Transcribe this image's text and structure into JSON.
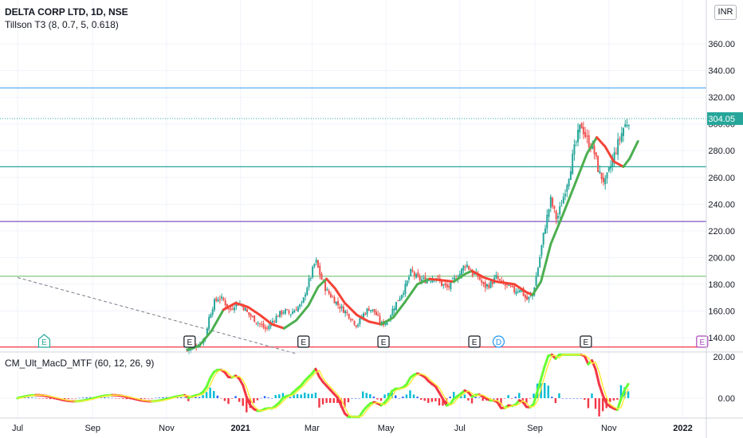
{
  "header": {
    "symbol": "DELTA CORP LTD",
    "interval": "1D",
    "exchange": "NSE",
    "currency": "INR"
  },
  "indicators": {
    "tillson": "Tillson T3 (8, 0.7, 5, 0.618)",
    "macd": "CM_Ult_MacD_MTF (60, 12, 26, 9)"
  },
  "chart_data": {
    "type": "candlestick",
    "ylim": [
      128,
      372
    ],
    "y_ticks": [
      140,
      160,
      180,
      200,
      220,
      240,
      260,
      280,
      300,
      320,
      340,
      360
    ],
    "y_tick_labels": [
      "140.00",
      "160.00",
      "180.00",
      "200.00",
      "220.00",
      "240.00",
      "260.00",
      "280.00",
      "300.00",
      "320.00",
      "340.00",
      "360.00"
    ],
    "x_labels": [
      {
        "label": "Jul",
        "day": 0
      },
      {
        "label": "Sep",
        "day": 62
      },
      {
        "label": "Nov",
        "day": 123
      },
      {
        "label": "2021",
        "day": 184
      },
      {
        "label": "Mar",
        "day": 243
      },
      {
        "label": "May",
        "day": 304
      },
      {
        "label": "Jul",
        "day": 365
      },
      {
        "label": "Sep",
        "day": 427
      },
      {
        "label": "Nov",
        "day": 488
      },
      {
        "label": "2022",
        "day": 549
      }
    ],
    "last_price": 304.05,
    "last_price_label": "304.05",
    "horizontal_lines": [
      {
        "value": 327,
        "color": "#64b5f6"
      },
      {
        "value": 268,
        "color": "#26a69a"
      },
      {
        "value": 227,
        "color": "#7e57c2"
      },
      {
        "value": 186,
        "color": "#81c784"
      },
      {
        "value": 133,
        "color": "#f23645"
      }
    ],
    "trendline": {
      "from": [
        0,
        185
      ],
      "to": [
        230,
        128
      ]
    },
    "closes": [
      [
        140,
        130
      ],
      [
        145,
        133
      ],
      [
        150,
        135
      ],
      [
        155,
        141
      ],
      [
        158,
        155
      ],
      [
        162,
        166
      ],
      [
        166,
        170
      ],
      [
        170,
        168
      ],
      [
        175,
        160
      ],
      [
        180,
        166
      ],
      [
        185,
        165
      ],
      [
        190,
        158
      ],
      [
        195,
        154
      ],
      [
        200,
        150
      ],
      [
        205,
        146
      ],
      [
        210,
        152
      ],
      [
        215,
        157
      ],
      [
        220,
        160
      ],
      [
        225,
        158
      ],
      [
        230,
        162
      ],
      [
        235,
        165
      ],
      [
        238,
        176
      ],
      [
        242,
        186
      ],
      [
        246,
        198
      ],
      [
        250,
        186
      ],
      [
        255,
        175
      ],
      [
        260,
        170
      ],
      [
        265,
        164
      ],
      [
        270,
        160
      ],
      [
        275,
        155
      ],
      [
        280,
        149
      ],
      [
        285,
        157
      ],
      [
        290,
        162
      ],
      [
        295,
        159
      ],
      [
        300,
        150
      ],
      [
        305,
        152
      ],
      [
        310,
        162
      ],
      [
        315,
        170
      ],
      [
        320,
        178
      ],
      [
        325,
        190
      ],
      [
        330,
        184
      ],
      [
        335,
        183
      ],
      [
        340,
        184
      ],
      [
        345,
        186
      ],
      [
        350,
        180
      ],
      [
        355,
        177
      ],
      [
        360,
        183
      ],
      [
        365,
        188
      ],
      [
        370,
        196
      ],
      [
        375,
        188
      ],
      [
        380,
        186
      ],
      [
        385,
        178
      ],
      [
        390,
        180
      ],
      [
        395,
        185
      ],
      [
        400,
        180
      ],
      [
        405,
        178
      ],
      [
        410,
        175
      ],
      [
        415,
        177
      ],
      [
        420,
        168
      ],
      [
        425,
        172
      ],
      [
        430,
        195
      ],
      [
        435,
        222
      ],
      [
        440,
        243
      ],
      [
        445,
        228
      ],
      [
        450,
        244
      ],
      [
        455,
        262
      ],
      [
        460,
        283
      ],
      [
        465,
        300
      ],
      [
        470,
        288
      ],
      [
        475,
        282
      ],
      [
        480,
        263
      ],
      [
        485,
        256
      ],
      [
        490,
        270
      ],
      [
        495,
        284
      ],
      [
        500,
        297
      ],
      [
        505,
        304
      ]
    ],
    "t3_segments": [
      {
        "color": "#4caf50",
        "points": [
          [
            140,
            131
          ],
          [
            150,
            134
          ],
          [
            160,
            145
          ],
          [
            170,
            161
          ]
        ]
      },
      {
        "color": "#f44336",
        "points": [
          [
            170,
            161
          ],
          [
            180,
            166
          ],
          [
            190,
            163
          ],
          [
            200,
            157
          ],
          [
            210,
            150
          ],
          [
            220,
            147
          ]
        ]
      },
      {
        "color": "#4caf50",
        "points": [
          [
            220,
            147
          ],
          [
            230,
            153
          ],
          [
            240,
            164
          ],
          [
            248,
            178
          ],
          [
            255,
            184
          ]
        ]
      },
      {
        "color": "#f44336",
        "points": [
          [
            255,
            184
          ],
          [
            262,
            177
          ],
          [
            270,
            166
          ],
          [
            280,
            157
          ],
          [
            290,
            152
          ],
          [
            300,
            150
          ]
        ]
      },
      {
        "color": "#4caf50",
        "points": [
          [
            300,
            150
          ],
          [
            310,
            155
          ],
          [
            320,
            167
          ],
          [
            330,
            180
          ],
          [
            340,
            184
          ]
        ]
      },
      {
        "color": "#f44336",
        "points": [
          [
            340,
            184
          ],
          [
            350,
            183
          ],
          [
            360,
            182
          ]
        ]
      },
      {
        "color": "#4caf50",
        "points": [
          [
            360,
            182
          ],
          [
            370,
            188
          ],
          [
            375,
            190
          ]
        ]
      },
      {
        "color": "#f44336",
        "points": [
          [
            375,
            190
          ],
          [
            385,
            185
          ],
          [
            395,
            182
          ],
          [
            410,
            180
          ],
          [
            420,
            174
          ],
          [
            425,
            172
          ]
        ]
      },
      {
        "color": "#4caf50",
        "points": [
          [
            425,
            172
          ],
          [
            432,
            182
          ],
          [
            440,
            210
          ],
          [
            450,
            232
          ],
          [
            460,
            255
          ],
          [
            470,
            278
          ],
          [
            478,
            290
          ]
        ]
      },
      {
        "color": "#f44336",
        "points": [
          [
            478,
            290
          ],
          [
            485,
            283
          ],
          [
            492,
            272
          ],
          [
            500,
            268
          ]
        ]
      },
      {
        "color": "#4caf50",
        "points": [
          [
            500,
            268
          ],
          [
            505,
            274
          ],
          [
            512,
            287
          ]
        ]
      }
    ],
    "earnings_markers": [
      {
        "label": "E",
        "day": 22,
        "style": "green"
      },
      {
        "label": "E",
        "day": 142,
        "style": "gray"
      },
      {
        "label": "E",
        "day": 236,
        "style": "gray"
      },
      {
        "label": "E",
        "day": 302,
        "style": "gray"
      },
      {
        "label": "E",
        "day": 377,
        "style": "gray"
      },
      {
        "label": "D",
        "day": 397,
        "style": "blue"
      },
      {
        "label": "E",
        "day": 469,
        "style": "gray"
      },
      {
        "label": "E",
        "day": 565,
        "style": "purple"
      }
    ],
    "macd_panel": {
      "y_ticks": [
        0,
        20
      ],
      "y_tick_labels": [
        "0.00",
        "20.00"
      ],
      "ylim": [
        -10,
        23
      ]
    }
  }
}
